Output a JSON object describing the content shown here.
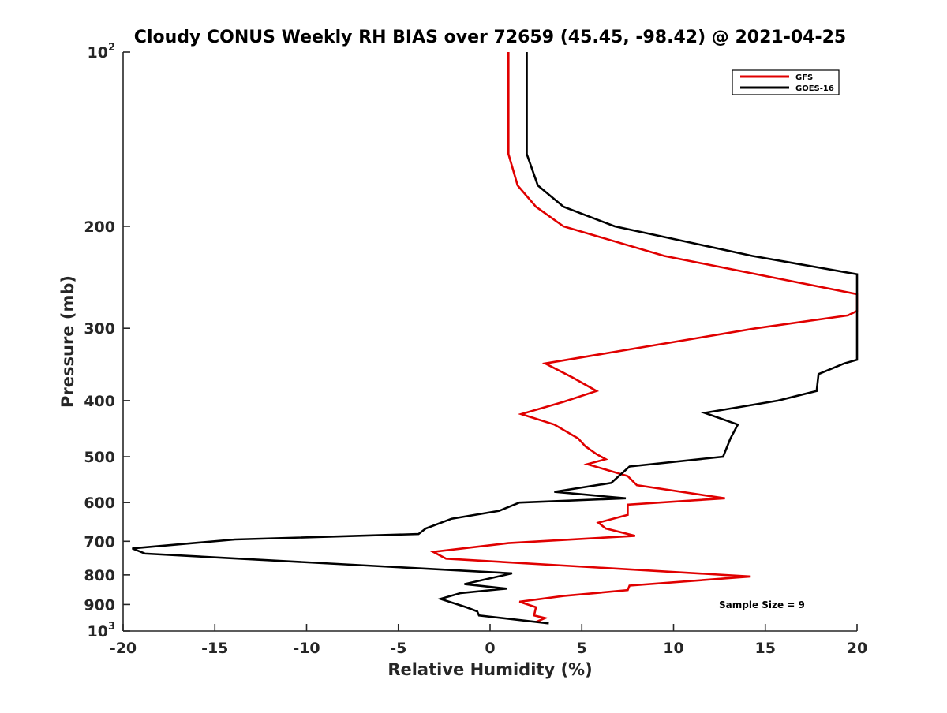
{
  "chart_data": {
    "type": "line",
    "title": "Cloudy CONUS Weekly RH BIAS over 72659 (45.45, -98.42) @ 2021-04-25",
    "xlabel": "Relative Humidity (%)",
    "ylabel": "Pressure (mb)",
    "xlim": [
      -20,
      20
    ],
    "ylim": [
      100,
      1000
    ],
    "y_scale": "log",
    "y_direction": "reversed",
    "grid": false,
    "legend_position": "top-right",
    "x_ticks": [
      {
        "value": -20,
        "label": "-20"
      },
      {
        "value": -15,
        "label": "-15"
      },
      {
        "value": -10,
        "label": "-10"
      },
      {
        "value": -5,
        "label": "-5"
      },
      {
        "value": 0,
        "label": "0"
      },
      {
        "value": 5,
        "label": "5"
      },
      {
        "value": 10,
        "label": "10"
      },
      {
        "value": 15,
        "label": "15"
      },
      {
        "value": 20,
        "label": "20"
      }
    ],
    "y_ticks": [
      {
        "value": 100,
        "label": "10",
        "sup": "2"
      },
      {
        "value": 200,
        "label": "200",
        "sup": ""
      },
      {
        "value": 300,
        "label": "300",
        "sup": ""
      },
      {
        "value": 400,
        "label": "400",
        "sup": ""
      },
      {
        "value": 500,
        "label": "500",
        "sup": ""
      },
      {
        "value": 600,
        "label": "600",
        "sup": ""
      },
      {
        "value": 700,
        "label": "700",
        "sup": ""
      },
      {
        "value": 800,
        "label": "800",
        "sup": ""
      },
      {
        "value": 900,
        "label": "900",
        "sup": ""
      },
      {
        "value": 1000,
        "label": "10",
        "sup": "3"
      }
    ],
    "series": [
      {
        "name": "GFS",
        "color": "#e00000",
        "points": [
          [
            1.0,
            100
          ],
          [
            1.0,
            150
          ],
          [
            1.5,
            170
          ],
          [
            2.5,
            185
          ],
          [
            4.0,
            200
          ],
          [
            9.5,
            225
          ],
          [
            20.0,
            262
          ],
          [
            20.0,
            280
          ],
          [
            19.5,
            285
          ],
          [
            14.5,
            300
          ],
          [
            3.0,
            345
          ],
          [
            4.5,
            365
          ],
          [
            5.8,
            385
          ],
          [
            4.0,
            402
          ],
          [
            1.7,
            422
          ],
          [
            3.5,
            440
          ],
          [
            4.8,
            465
          ],
          [
            5.2,
            480
          ],
          [
            5.8,
            495
          ],
          [
            6.3,
            505
          ],
          [
            5.3,
            515
          ],
          [
            7.5,
            540
          ],
          [
            8.0,
            560
          ],
          [
            12.8,
            590
          ],
          [
            7.5,
            605
          ],
          [
            7.5,
            630
          ],
          [
            5.9,
            650
          ],
          [
            6.3,
            665
          ],
          [
            7.9,
            685
          ],
          [
            1.0,
            705
          ],
          [
            -3.1,
            730
          ],
          [
            -2.4,
            750
          ],
          [
            14.2,
            805
          ],
          [
            7.6,
            835
          ],
          [
            7.5,
            850
          ],
          [
            4.0,
            870
          ],
          [
            1.6,
            890
          ],
          [
            2.5,
            910
          ],
          [
            2.4,
            940
          ],
          [
            3.0,
            950
          ],
          [
            2.5,
            965
          ]
        ]
      },
      {
        "name": "GOES-16",
        "color": "#000000",
        "points": [
          [
            2.0,
            100
          ],
          [
            2.0,
            150
          ],
          [
            2.6,
            170
          ],
          [
            4.0,
            185
          ],
          [
            6.8,
            200
          ],
          [
            14.3,
            225
          ],
          [
            20.0,
            242
          ],
          [
            20.0,
            340
          ],
          [
            19.3,
            345
          ],
          [
            17.9,
            360
          ],
          [
            17.8,
            385
          ],
          [
            15.7,
            400
          ],
          [
            11.7,
            420
          ],
          [
            13.5,
            440
          ],
          [
            13.1,
            465
          ],
          [
            12.7,
            500
          ],
          [
            7.6,
            520
          ],
          [
            6.6,
            555
          ],
          [
            3.5,
            575
          ],
          [
            7.4,
            590
          ],
          [
            1.6,
            600
          ],
          [
            0.5,
            620
          ],
          [
            -2.1,
            640
          ],
          [
            -3.5,
            665
          ],
          [
            -3.9,
            680
          ],
          [
            -13.9,
            695
          ],
          [
            -19.5,
            720
          ],
          [
            -18.8,
            735
          ],
          [
            1.2,
            795
          ],
          [
            -1.4,
            830
          ],
          [
            0.9,
            845
          ],
          [
            -1.6,
            860
          ],
          [
            -2.7,
            880
          ],
          [
            -1.3,
            910
          ],
          [
            -0.7,
            925
          ],
          [
            -0.6,
            940
          ],
          [
            3.2,
            970
          ]
        ]
      }
    ],
    "legend": [
      {
        "name": "GFS",
        "color": "#e00000"
      },
      {
        "name": "GOES-16",
        "color": "#000000"
      }
    ],
    "annotations": [
      {
        "text": "Sample Size = 9"
      }
    ]
  }
}
